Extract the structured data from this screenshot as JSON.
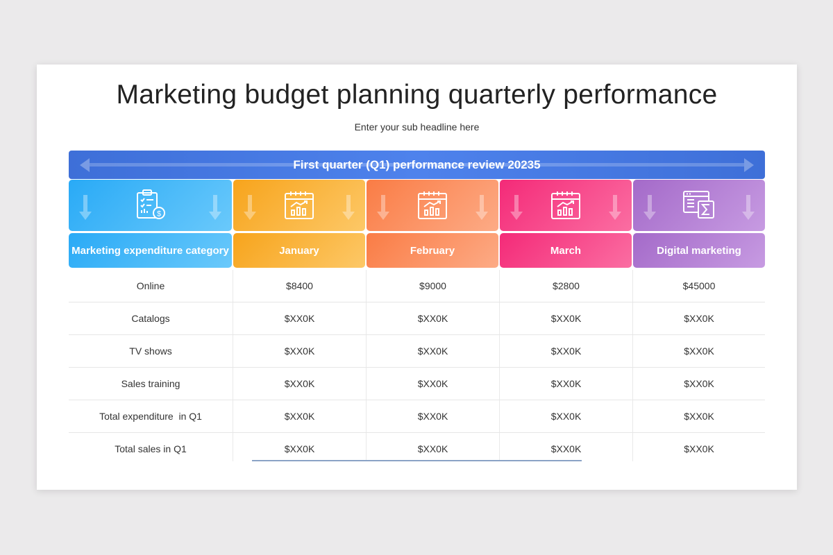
{
  "title": "Marketing budget planning quarterly performance",
  "subtitle": "Enter your sub headline here",
  "banner": "First quarter (Q1) performance review 20235",
  "columns": [
    {
      "label": "Marketing expenditure category",
      "icon": "clipboard-dollar-icon",
      "color": "#29aaf6"
    },
    {
      "label": "January",
      "icon": "calendar-chart-icon",
      "color": "#f7a41c"
    },
    {
      "label": "February",
      "icon": "calendar-chart-icon",
      "color": "#fa7c45"
    },
    {
      "label": "March",
      "icon": "calendar-chart-icon",
      "color": "#f42a78"
    },
    {
      "label": "Digital marketing",
      "icon": "spreadsheet-sigma-icon",
      "color": "#a46ac9"
    }
  ],
  "rows": [
    {
      "category": "Online",
      "values": [
        "$8400",
        "$9000",
        "$2800",
        "$45000"
      ]
    },
    {
      "category": "Catalogs",
      "values": [
        "$XX0K",
        "$XX0K",
        "$XX0K",
        "$XX0K"
      ]
    },
    {
      "category": "TV shows",
      "values": [
        "$XX0K",
        "$XX0K",
        "$XX0K",
        "$XX0K"
      ]
    },
    {
      "category": "Sales training",
      "values": [
        "$XX0K",
        "$XX0K",
        "$XX0K",
        "$XX0K"
      ]
    },
    {
      "category": "Total expenditure  in Q1",
      "values": [
        "$XX0K",
        "$XX0K",
        "$XX0K",
        "$XX0K"
      ]
    },
    {
      "category": "Total sales in Q1",
      "values": [
        "$XX0K",
        "$XX0K",
        "$XX0K",
        "$XX0K"
      ]
    }
  ]
}
